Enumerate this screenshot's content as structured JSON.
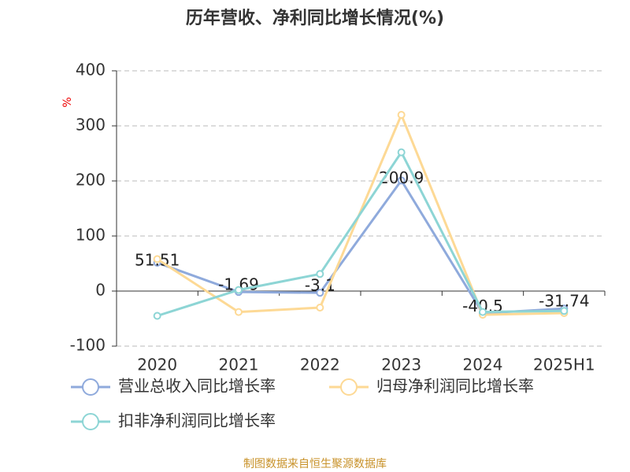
{
  "chart_data": {
    "type": "line",
    "title": "历年营收、净利同比增长情况(%)",
    "ylabel": "%",
    "categories": [
      "2020",
      "2021",
      "2022",
      "2023",
      "2024",
      "2025H1"
    ],
    "series": [
      {
        "name": "营业总收入同比增长率",
        "color": "#8faadc",
        "values": [
          51.51,
          -1.69,
          -3.1,
          200.9,
          -40.5,
          -31.74
        ],
        "show_labels": true
      },
      {
        "name": "归母净利润同比增长率",
        "color": "#fdd995",
        "values": [
          58,
          -38,
          -30,
          320,
          -43,
          -40
        ]
      },
      {
        "name": "扣非净利润同比增长率",
        "color": "#8dd5d5",
        "values": [
          -45,
          2,
          31,
          252,
          -38,
          -36
        ]
      }
    ],
    "ylim": [
      -100,
      400
    ],
    "yticks": [
      -100,
      0,
      100,
      200,
      300,
      400
    ],
    "grid": true,
    "source": "制图数据来自恒生聚源数据库"
  }
}
